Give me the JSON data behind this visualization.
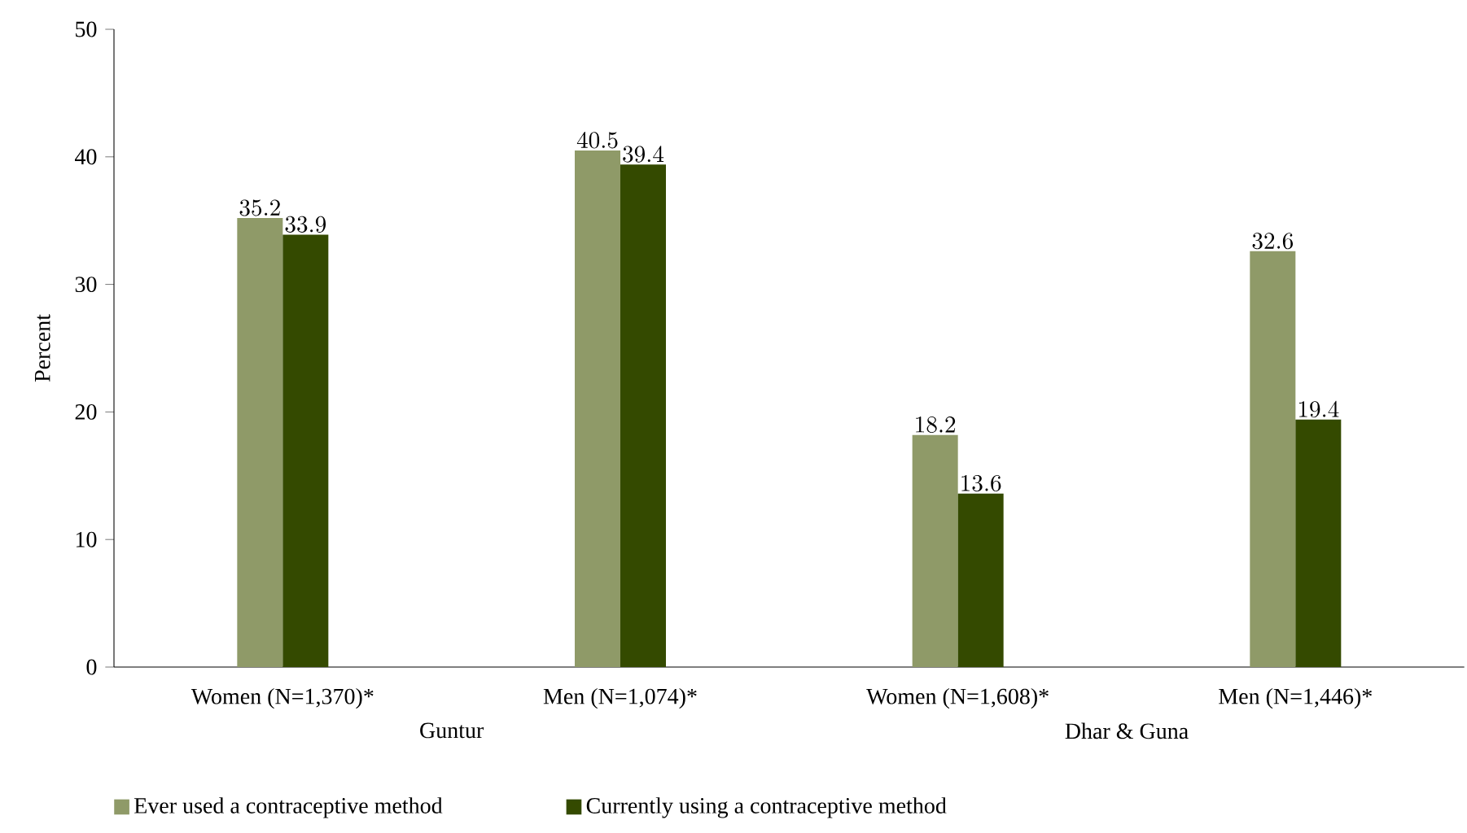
{
  "chart_data": {
    "type": "bar",
    "ylabel": "Percent",
    "categories": [
      "Women (N=1,370)*",
      "Men (N=1,074)*",
      "Women (N=1,608)*",
      "Men (N=1,446)*"
    ],
    "series": [
      {
        "name": "Ever used a contraceptive method",
        "color": "#8f9a68",
        "values": [
          35.2,
          40.5,
          18.2,
          32.6
        ]
      },
      {
        "name": "Currently using a contraceptive method",
        "color": "#344a00",
        "values": [
          33.9,
          39.4,
          13.6,
          19.4
        ]
      }
    ],
    "ylim": [
      0,
      50
    ],
    "yticks": [
      0,
      10,
      20,
      30,
      40,
      50
    ],
    "data_labels": true,
    "legend": "bottom",
    "annotations": [
      "Guntur",
      "Dhar & Guna"
    ]
  }
}
